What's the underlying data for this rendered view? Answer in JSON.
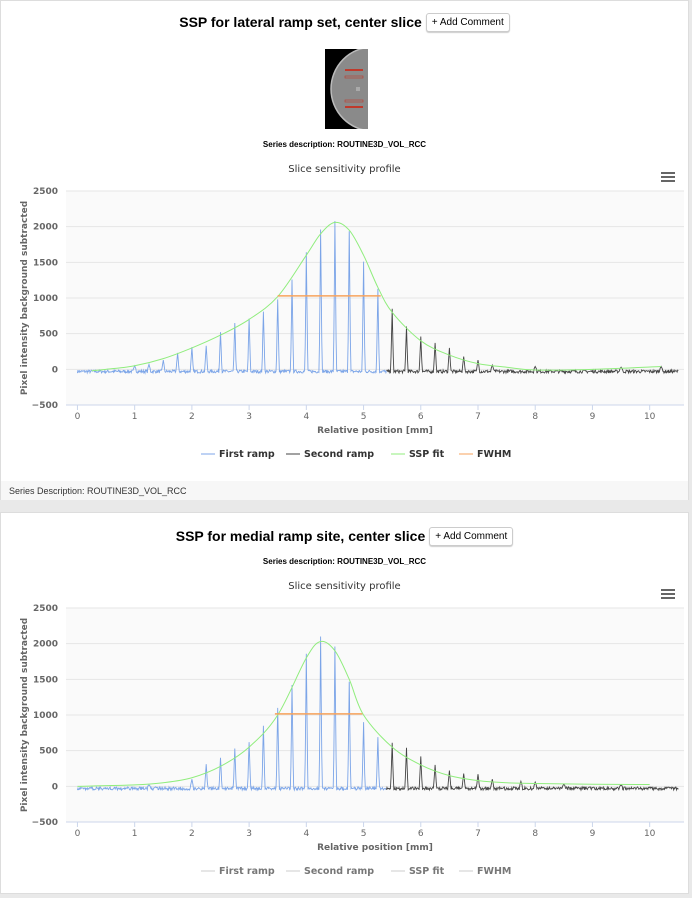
{
  "panels": [
    {
      "title": "SSP for lateral ramp set, center slice",
      "add_comment": "+ Add Comment",
      "series_description": "Series description: ROUTINE3D_VOL_RCC",
      "footer": "Series Description: ROUTINE3D_VOL_RCC",
      "has_thumbnail": true
    },
    {
      "title": "SSP for medial ramp site, center slice",
      "add_comment": "+ Add Comment",
      "series_description": "Series description: ROUTINE3D_VOL_RCC"
    }
  ],
  "chart_data": [
    {
      "type": "line",
      "title": "Slice sensitivity profile",
      "xlabel": "Relative position [mm]",
      "ylabel": "Pixel intensity background subtracted",
      "xlim": [
        -0.2,
        10.6
      ],
      "ylim": [
        -500,
        2500
      ],
      "xticks": [
        0,
        1,
        2,
        3,
        4,
        5,
        6,
        7,
        8,
        9,
        10
      ],
      "yticks": [
        -500,
        0,
        500,
        1000,
        1500,
        2000,
        2500
      ],
      "grid": true,
      "legend": "bottom",
      "legend_muted": false,
      "series": [
        {
          "name": "First ramp",
          "color": "#7ca5e8",
          "range": [
            0,
            5.4
          ],
          "peaks": [
            [
              1.0,
              50
            ],
            [
              1.25,
              70
            ],
            [
              1.5,
              130
            ],
            [
              1.75,
              230
            ],
            [
              2.0,
              310
            ],
            [
              2.25,
              330
            ],
            [
              2.5,
              520
            ],
            [
              2.75,
              650
            ],
            [
              3.0,
              710
            ],
            [
              3.25,
              810
            ],
            [
              3.5,
              980
            ],
            [
              3.75,
              1260
            ],
            [
              4.0,
              1640
            ],
            [
              4.25,
              1960
            ],
            [
              4.5,
              2080
            ],
            [
              4.75,
              1930
            ],
            [
              5.0,
              1510
            ],
            [
              5.25,
              1130
            ]
          ]
        },
        {
          "name": "Second ramp",
          "color": "#444444",
          "range": [
            5.4,
            10.5
          ],
          "peaks": [
            [
              5.5,
              850
            ],
            [
              5.75,
              600
            ],
            [
              6.0,
              460
            ],
            [
              6.25,
              370
            ],
            [
              6.5,
              300
            ],
            [
              6.75,
              180
            ],
            [
              7.0,
              130
            ],
            [
              7.25,
              60
            ],
            [
              8.0,
              40
            ],
            [
              9.5,
              30
            ],
            [
              10.2,
              40
            ]
          ]
        },
        {
          "name": "SSP fit",
          "color": "#90ed7d",
          "points": [
            [
              0.25,
              -20
            ],
            [
              0.5,
              0
            ],
            [
              1,
              50
            ],
            [
              1.5,
              150
            ],
            [
              2,
              300
            ],
            [
              2.5,
              480
            ],
            [
              3,
              700
            ],
            [
              3.5,
              1020
            ],
            [
              4,
              1600
            ],
            [
              4.25,
              1900
            ],
            [
              4.5,
              2060
            ],
            [
              4.75,
              1950
            ],
            [
              5,
              1600
            ],
            [
              5.25,
              1150
            ],
            [
              5.5,
              800
            ],
            [
              6,
              400
            ],
            [
              6.5,
              200
            ],
            [
              7,
              80
            ],
            [
              7.5,
              30
            ],
            [
              8,
              -10
            ],
            [
              9,
              0
            ],
            [
              10.2,
              40
            ]
          ]
        },
        {
          "name": "FWHM",
          "color": "#f7a35c",
          "points": [
            [
              3.5,
              1030
            ],
            [
              5.3,
              1030
            ]
          ]
        }
      ]
    },
    {
      "type": "line",
      "title": "Slice sensitivity profile",
      "xlabel": "Relative position [mm]",
      "ylabel": "Pixel intensity background subtracted",
      "xlim": [
        -0.2,
        10.6
      ],
      "ylim": [
        -500,
        2500
      ],
      "xticks": [
        0,
        1,
        2,
        3,
        4,
        5,
        6,
        7,
        8,
        9,
        10
      ],
      "yticks": [
        -500,
        0,
        500,
        1000,
        1500,
        2000,
        2500
      ],
      "grid": true,
      "legend": "bottom",
      "legend_muted": true,
      "series": [
        {
          "name": "First ramp",
          "color": "#7ca5e8",
          "range": [
            0,
            5.4
          ],
          "peaks": [
            [
              1.25,
              20
            ],
            [
              2.0,
              100
            ],
            [
              2.25,
              310
            ],
            [
              2.5,
              400
            ],
            [
              2.75,
              530
            ],
            [
              3.0,
              620
            ],
            [
              3.25,
              850
            ],
            [
              3.5,
              1100
            ],
            [
              3.75,
              1420
            ],
            [
              4.0,
              1860
            ],
            [
              4.25,
              2100
            ],
            [
              4.5,
              1960
            ],
            [
              4.75,
              1460
            ],
            [
              5.0,
              900
            ],
            [
              5.25,
              690
            ]
          ]
        },
        {
          "name": "Second ramp",
          "color": "#444444",
          "range": [
            5.4,
            10.5
          ],
          "peaks": [
            [
              5.5,
              610
            ],
            [
              5.75,
              540
            ],
            [
              6.0,
              420
            ],
            [
              6.25,
              300
            ],
            [
              6.5,
              220
            ],
            [
              6.75,
              180
            ],
            [
              7.0,
              170
            ],
            [
              7.25,
              100
            ],
            [
              7.75,
              70
            ],
            [
              8.0,
              60
            ],
            [
              8.5,
              30
            ],
            [
              9.5,
              20
            ]
          ]
        },
        {
          "name": "SSP fit",
          "color": "#90ed7d",
          "points": [
            [
              0,
              0
            ],
            [
              1,
              20
            ],
            [
              1.5,
              50
            ],
            [
              2,
              120
            ],
            [
              2.5,
              280
            ],
            [
              3,
              550
            ],
            [
              3.5,
              1000
            ],
            [
              4,
              1800
            ],
            [
              4.25,
              2030
            ],
            [
              4.5,
              1900
            ],
            [
              4.75,
              1500
            ],
            [
              5,
              1000
            ],
            [
              5.5,
              550
            ],
            [
              6,
              300
            ],
            [
              6.5,
              150
            ],
            [
              7,
              80
            ],
            [
              7.5,
              50
            ],
            [
              8,
              40
            ],
            [
              9,
              30
            ],
            [
              10,
              25
            ]
          ]
        },
        {
          "name": "FWHM",
          "color": "#f7a35c",
          "points": [
            [
              3.45,
              1015
            ],
            [
              4.98,
              1015
            ]
          ]
        }
      ]
    }
  ]
}
